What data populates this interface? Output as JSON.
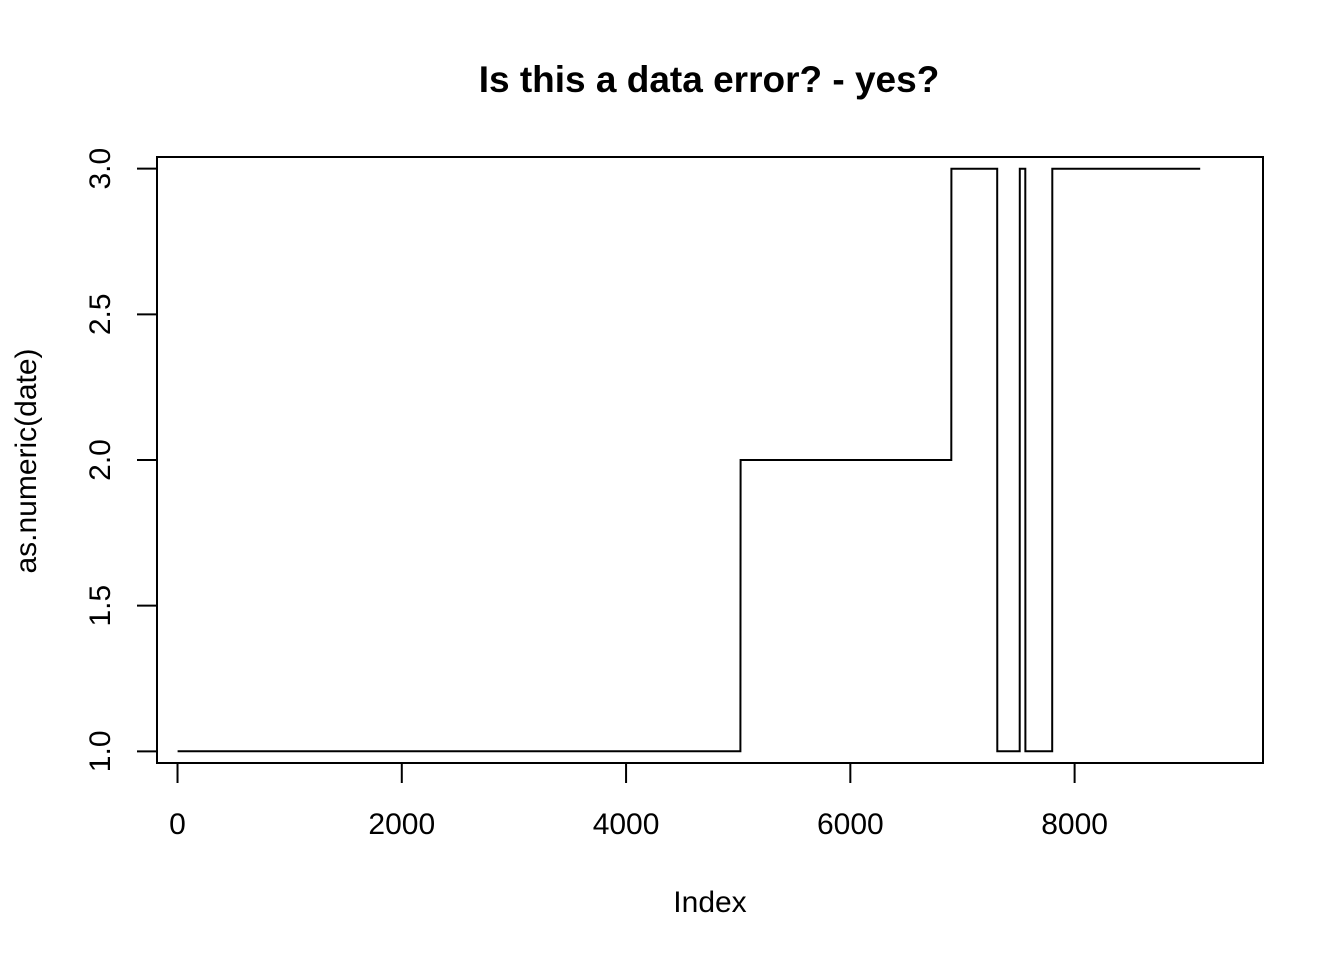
{
  "chart_data": {
    "type": "line",
    "title": "Is this a data error? - yes?",
    "xlabel": "Index",
    "ylabel": "as.numeric(date)",
    "xlim": [
      -183,
      9680
    ],
    "ylim": [
      0.96,
      3.04
    ],
    "x_ticks": [
      0,
      2000,
      4000,
      6000,
      8000
    ],
    "x_tick_labels": [
      "0",
      "2000",
      "4000",
      "6000",
      "8000"
    ],
    "y_ticks": [
      1.0,
      1.5,
      2.0,
      2.5,
      3.0
    ],
    "y_tick_labels": [
      "1.0",
      "1.5",
      "2.0",
      "2.5",
      "3.0"
    ],
    "grid": false,
    "legend": "none",
    "line_style": "step",
    "color": "#000000",
    "series": [
      {
        "x": [
          1,
          5020,
          5021,
          6900,
          6901,
          7310,
          7311,
          7510,
          7511,
          7560,
          7561,
          7800,
          7801,
          9120
        ],
        "y": [
          1,
          1,
          2,
          2,
          3,
          3,
          1,
          1,
          3,
          3,
          1,
          1,
          3,
          3
        ]
      }
    ]
  }
}
